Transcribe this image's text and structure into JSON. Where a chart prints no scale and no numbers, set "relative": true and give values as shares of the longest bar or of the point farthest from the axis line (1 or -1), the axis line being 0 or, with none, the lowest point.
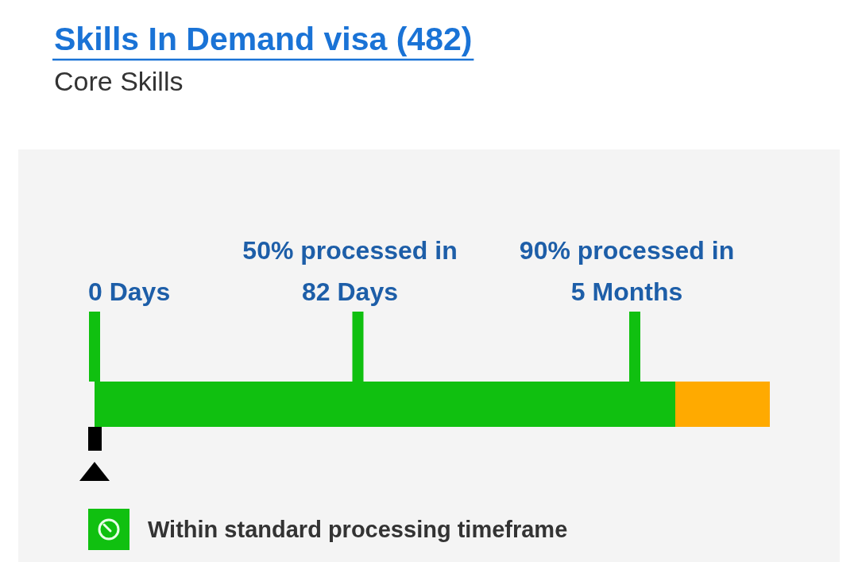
{
  "chart_data": {
    "type": "bar",
    "orientation": "horizontal",
    "stacked": true,
    "relative": true,
    "title": "Skills In Demand visa (482)",
    "subtitle": "Core Skills",
    "categories": [
      null
    ],
    "series": [
      {
        "name": "Within standard processing timeframe",
        "color": "#10c010",
        "values": [
          0.86
        ]
      },
      {
        "color": "#ffaa00",
        "values": [
          0.14
        ]
      }
    ],
    "ref_lines": [
      {
        "axis": "x",
        "value": 0,
        "label": "0 Days",
        "color": "#10c010"
      },
      {
        "axis": "x",
        "value": 0.39,
        "label": "50% processed in 82 Days",
        "color": "#10c010"
      },
      {
        "axis": "x",
        "value": 0.8,
        "label": "90% processed in 5 Months",
        "color": "#10c010"
      }
    ],
    "legend": "bottom"
  }
}
